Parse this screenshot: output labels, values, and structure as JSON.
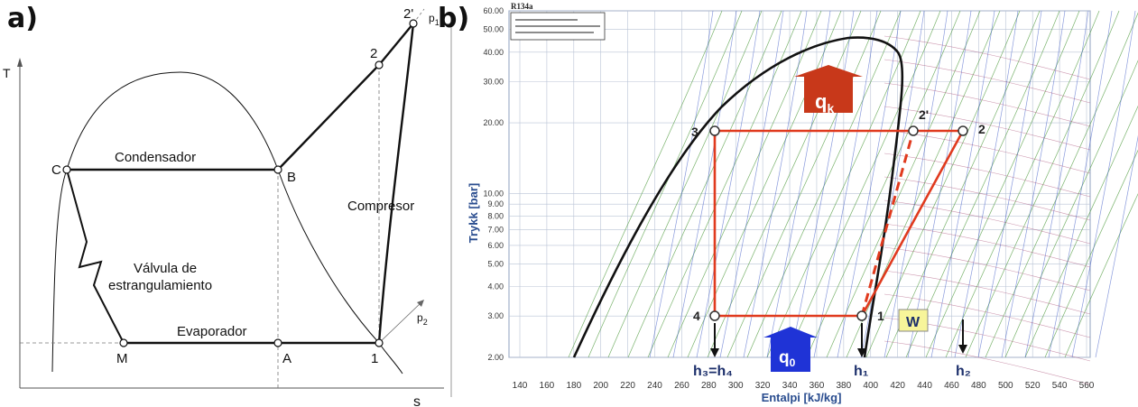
{
  "panel_a": {
    "label": "a)",
    "axis_t": "T",
    "axis_s": "s",
    "p1_main": "p",
    "p1_sub": "1",
    "p2_main": "p",
    "p2_sub": "2",
    "points": {
      "C": "C",
      "B": "B",
      "M": "M",
      "A": "A",
      "one": "1",
      "two": "2",
      "two_prime": "2'"
    },
    "condensador": "Condensador",
    "compresor": "Compresor",
    "valvula_line1": "Válvula de",
    "valvula_line2": "estrangulamiento",
    "evaporador": "Evaporador"
  },
  "panel_b": {
    "label": "b)",
    "title": "R134a",
    "ylabel": "Trykk [bar]",
    "xlabel": "Entalpi [kJ/kg]",
    "y_ticks": [
      "60.00",
      "50.00",
      "40.00",
      "30.00",
      "20.00",
      "10.00",
      "9.00",
      "8.00",
      "7.00",
      "6.00",
      "5.00",
      "4.00",
      "3.00",
      "2.00"
    ],
    "x_ticks": [
      "140",
      "160",
      "180",
      "200",
      "220",
      "240",
      "260",
      "280",
      "300",
      "320",
      "340",
      "360",
      "380",
      "400",
      "420",
      "440",
      "460",
      "480",
      "500",
      "520",
      "540",
      "560"
    ],
    "states": {
      "s1": "1",
      "s2": "2",
      "s2p": "2'",
      "s3": "3",
      "s4": "4"
    },
    "qk_main": "q",
    "qk_sub": "k",
    "q0_main": "q",
    "q0_sub": "0",
    "w": "W",
    "h3h4": "h₃=h₄",
    "h1": "h₁",
    "h2": "h₂",
    "colors": {
      "cycle": "#e03a1e",
      "qk_arrow": "#c8381a",
      "q0_arrow": "#1f33d6",
      "w_box": "#f7f59a",
      "grid": "#b9c3d6",
      "green_lines": "#4e9a3c",
      "dome": "#111111"
    }
  }
}
